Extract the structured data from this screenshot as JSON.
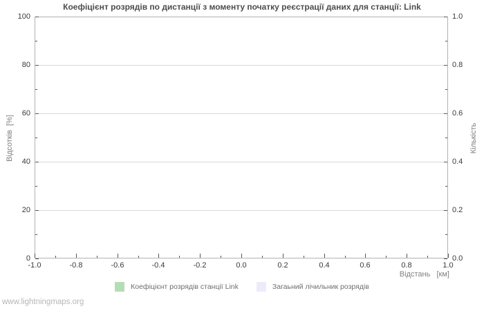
{
  "page": {
    "watermark": "www.lightningmaps.org"
  },
  "chart_data": {
    "type": "line",
    "title": "Коефіцієнт розрядів по дистанції з моменту початку реєстрації даних для станції: Link",
    "xlabel": "Відстань   [км]",
    "ylabel_left": "Відсотків  [%]",
    "ylabel_right": "Кількість",
    "xlim": [
      -1.0,
      1.0
    ],
    "ylim_left": [
      0,
      100
    ],
    "ylim_right": [
      0.0,
      1.0
    ],
    "x_ticks": [
      -1.0,
      -0.8,
      -0.6,
      -0.4,
      -0.2,
      0.0,
      0.2,
      0.4,
      0.6,
      0.8,
      1.0
    ],
    "x_tick_labels": [
      "-1.0",
      "-0.8",
      "-0.6",
      "-0.4",
      "-0.2",
      "0.0",
      "0.2",
      "0.4",
      "0.6",
      "0.8",
      "1.0"
    ],
    "x_minor_step": 0.1,
    "y_left_ticks": [
      0,
      20,
      40,
      60,
      80,
      100
    ],
    "y_left_tick_labels": [
      "0",
      "20",
      "40",
      "60",
      "80",
      "100"
    ],
    "y_left_minor_step": 10,
    "y_right_ticks": [
      0.0,
      0.2,
      0.4,
      0.6,
      0.8,
      1.0
    ],
    "y_right_tick_labels": [
      "0.0",
      "0.2",
      "0.4",
      "0.6",
      "0.8",
      "1.0"
    ],
    "y_right_minor_step": 0.1,
    "grid": "horizontal-major-only",
    "legend_position": "bottom-center",
    "series": [
      {
        "name": "Коефіцієнт розрядів станції Link",
        "color": "#b5ddb5",
        "values": []
      },
      {
        "name": "Загаьний лічильник розрядів",
        "color": "#ececf9",
        "values": []
      }
    ]
  },
  "colors": {
    "background": "#ffffff",
    "plot_border": "#b2b2b2",
    "gridline": "#d9d9d9",
    "tick_mark": "#555555",
    "title_text": "#4d4d4d",
    "tick_label_text": "#3a3a3a",
    "axis_title_text": "#7f7f7f",
    "legend_text": "#6e6e6e",
    "watermark_text": "#b6b6b6"
  }
}
